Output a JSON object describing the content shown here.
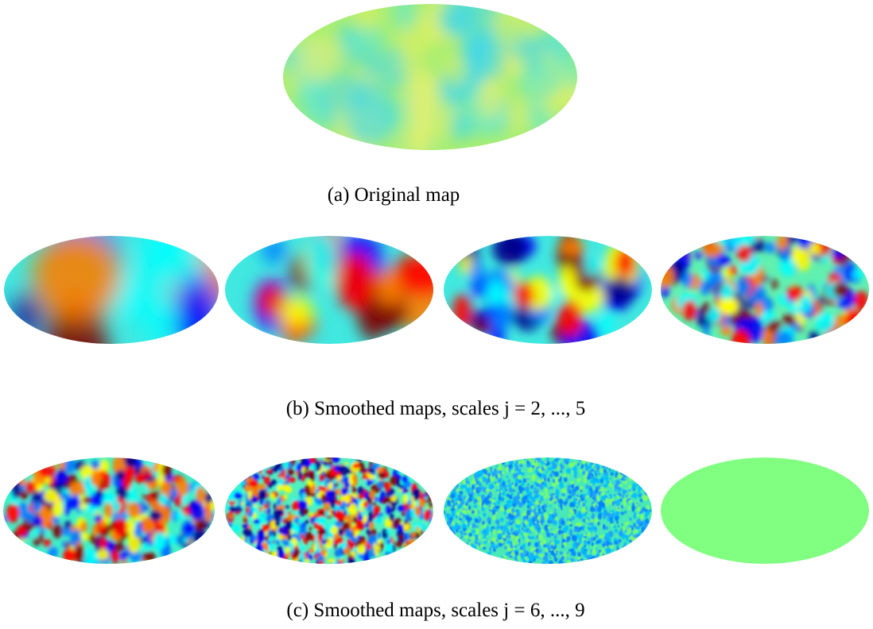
{
  "figure": {
    "panels": [
      {
        "caption": "(a) Original map"
      },
      {
        "caption": "(b) Smoothed maps, scales j = 2, ..., 5"
      },
      {
        "caption": "(c) Smoothed maps, scales j = 6, ..., 9"
      }
    ]
  }
}
